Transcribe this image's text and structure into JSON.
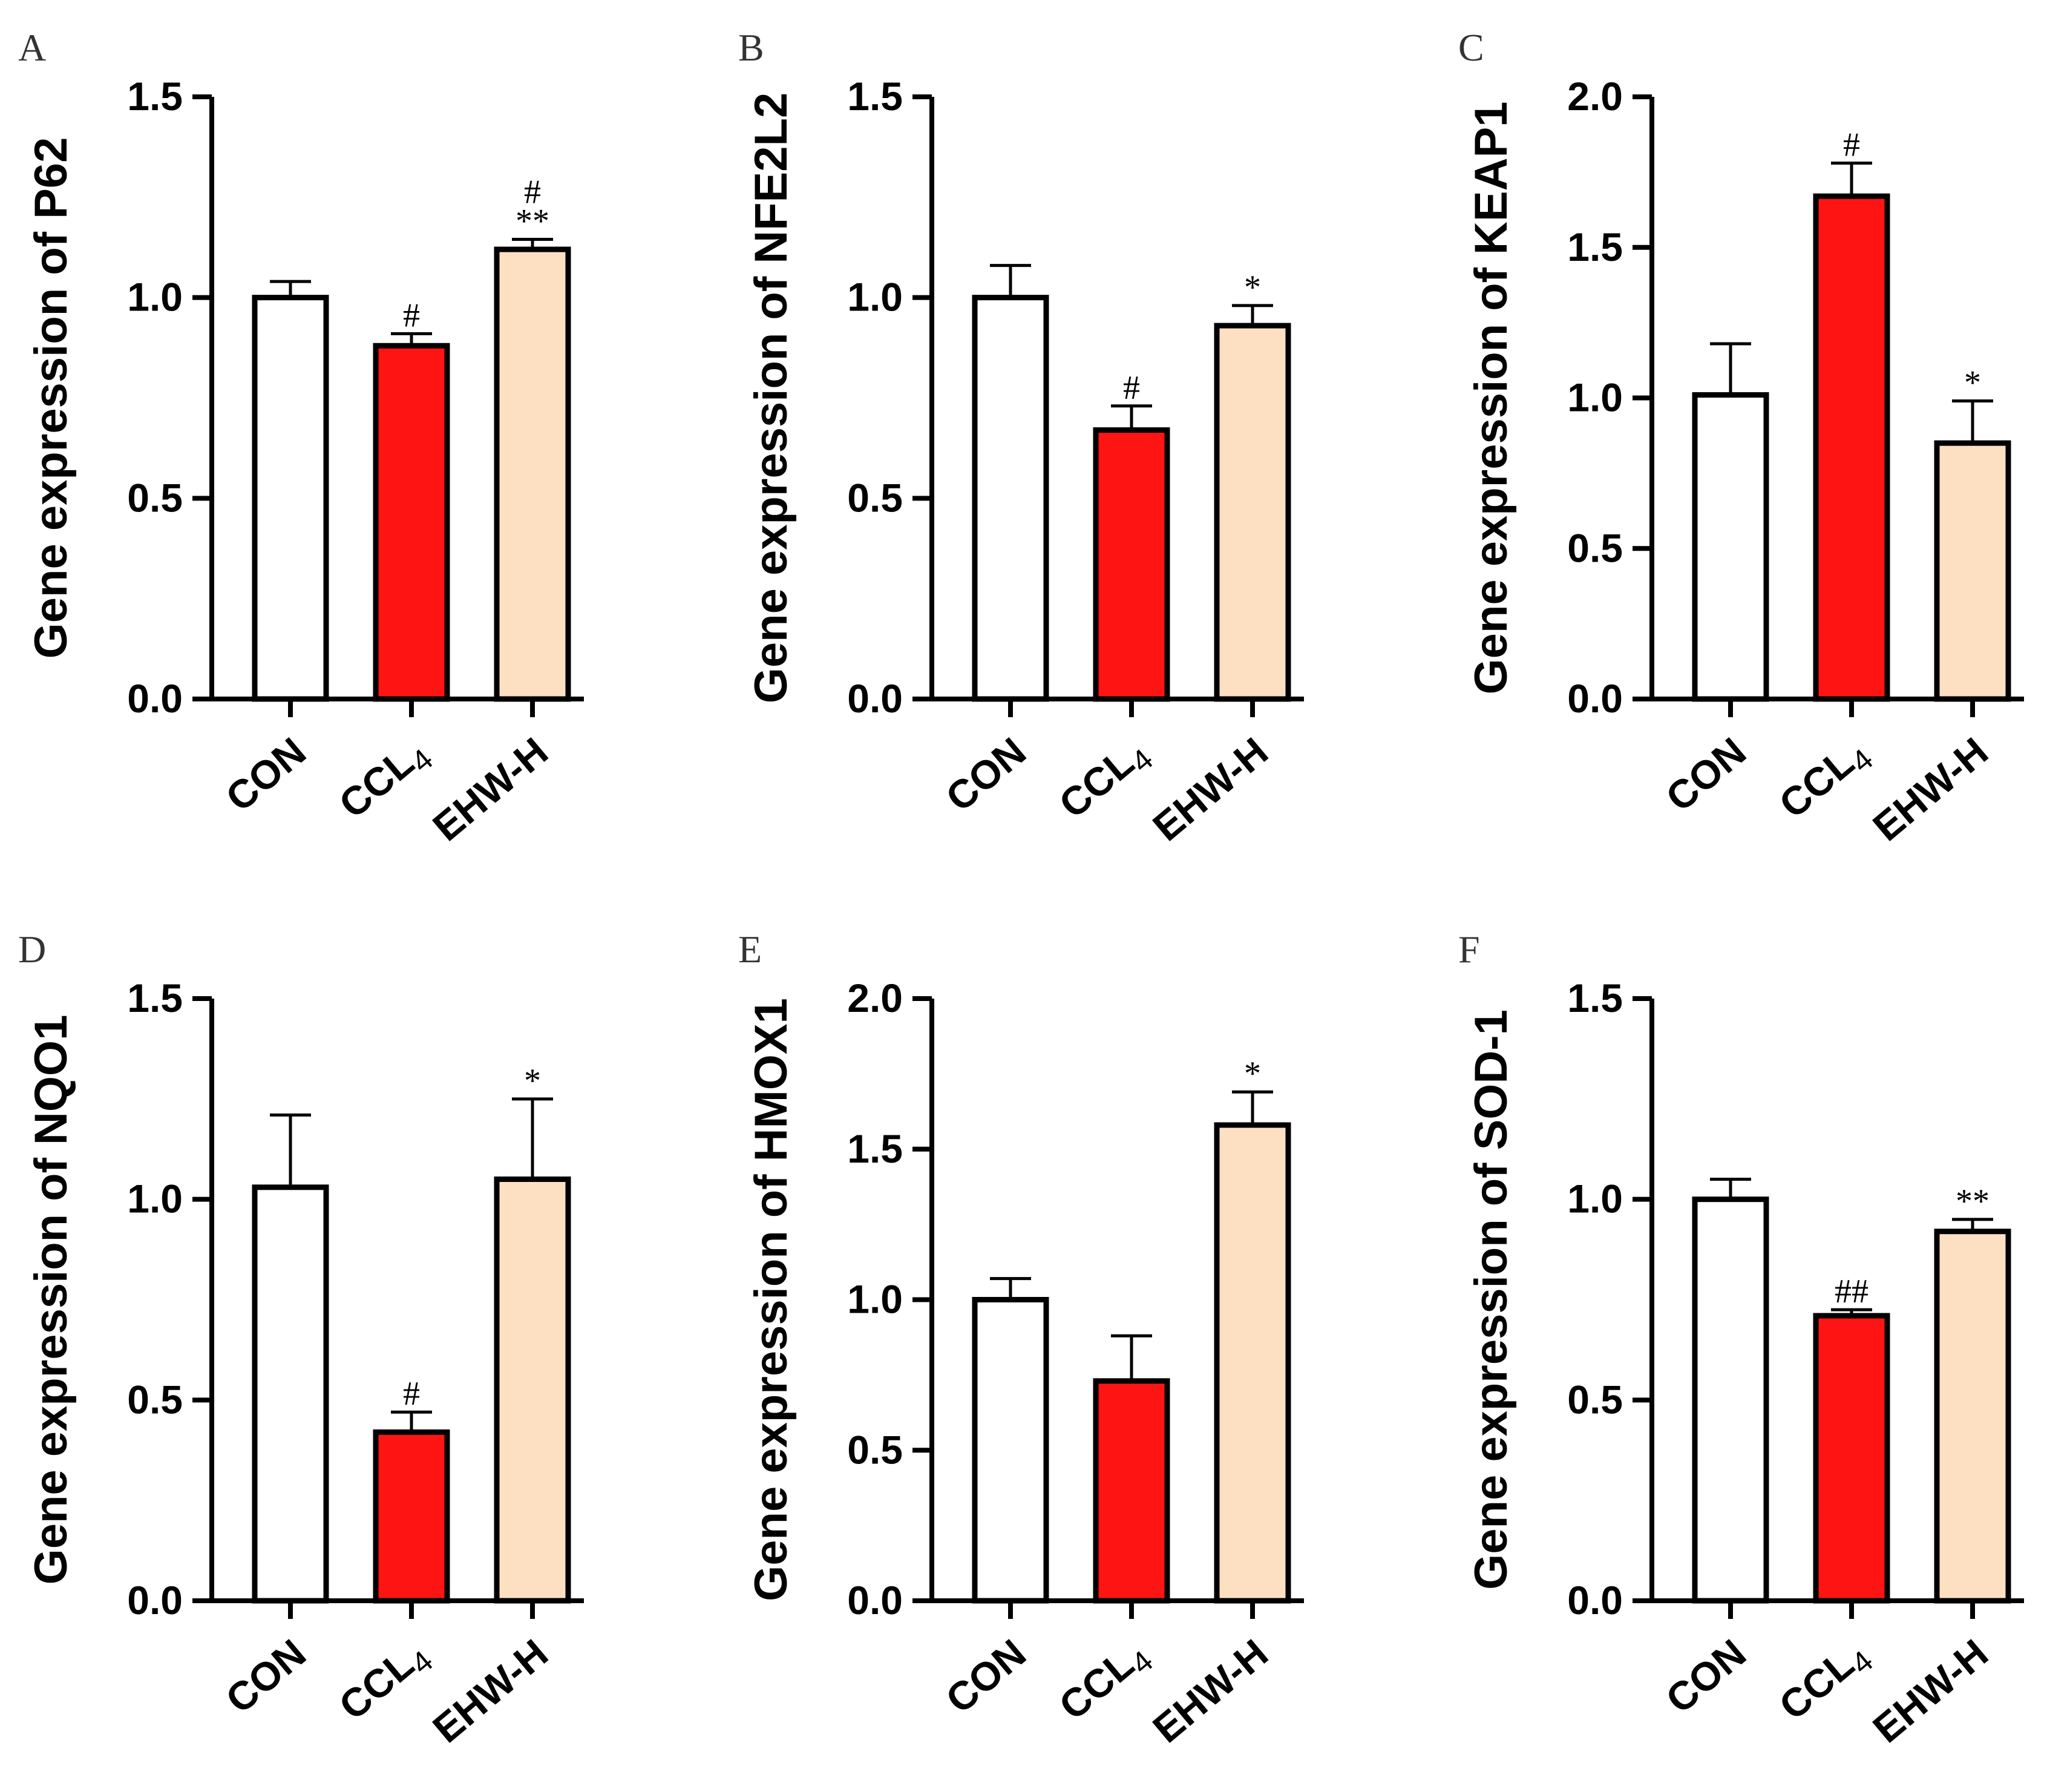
{
  "colors": {
    "con": "#ffffff",
    "ccl4": "#ff1414",
    "ehw": "#fde0c2",
    "stroke": "#000000"
  },
  "chart_data": [
    {
      "panel": "A",
      "type": "bar",
      "ylabel": "Gene expression of P62",
      "categories": [
        {
          "base": "CON",
          "sub": ""
        },
        {
          "base": "CCL",
          "sub": "4"
        },
        {
          "base": "EHW-H",
          "sub": ""
        }
      ],
      "values": [
        1.0,
        0.88,
        1.12
      ],
      "errors": [
        0.04,
        0.03,
        0.025
      ],
      "significance": [
        "",
        "#",
        "#\n**"
      ],
      "ylim": [
        0,
        1.5
      ],
      "yticks": [
        "0.0",
        "0.5",
        "1.0",
        "1.5"
      ],
      "tickvals": [
        0,
        0.5,
        1.0,
        1.5
      ]
    },
    {
      "panel": "B",
      "type": "bar",
      "ylabel": "Gene expression of NFE2L2",
      "categories": [
        {
          "base": "CON",
          "sub": ""
        },
        {
          "base": "CCL",
          "sub": "4"
        },
        {
          "base": "EHW-H",
          "sub": ""
        }
      ],
      "values": [
        1.0,
        0.67,
        0.93
      ],
      "errors": [
        0.08,
        0.06,
        0.05
      ],
      "significance": [
        "",
        "#",
        "*"
      ],
      "ylim": [
        0,
        1.5
      ],
      "yticks": [
        "0.0",
        "0.5",
        "1.0",
        "1.5"
      ],
      "tickvals": [
        0,
        0.5,
        1.0,
        1.5
      ]
    },
    {
      "panel": "C",
      "type": "bar",
      "ylabel": "Gene expression of KEAP1",
      "categories": [
        {
          "base": "CON",
          "sub": ""
        },
        {
          "base": "CCL",
          "sub": "4"
        },
        {
          "base": "EHW-H",
          "sub": ""
        }
      ],
      "values": [
        1.01,
        1.67,
        0.85
      ],
      "errors": [
        0.17,
        0.11,
        0.14
      ],
      "significance": [
        "",
        "#",
        "*"
      ],
      "ylim": [
        0,
        2.0
      ],
      "yticks": [
        "0.0",
        "0.5",
        "1.0",
        "1.5",
        "2.0"
      ],
      "tickvals": [
        0,
        0.5,
        1.0,
        1.5,
        2.0
      ]
    },
    {
      "panel": "D",
      "type": "bar",
      "ylabel": "Gene expression of NQO1",
      "categories": [
        {
          "base": "CON",
          "sub": ""
        },
        {
          "base": "CCL",
          "sub": "4"
        },
        {
          "base": "EHW-H",
          "sub": ""
        }
      ],
      "values": [
        1.03,
        0.42,
        1.05
      ],
      "errors": [
        0.18,
        0.05,
        0.2
      ],
      "significance": [
        "",
        "#",
        "*"
      ],
      "ylim": [
        0,
        1.5
      ],
      "yticks": [
        "0.0",
        "0.5",
        "1.0",
        "1.5"
      ],
      "tickvals": [
        0,
        0.5,
        1.0,
        1.5
      ]
    },
    {
      "panel": "E",
      "type": "bar",
      "ylabel": "Gene expression of HMOX1",
      "categories": [
        {
          "base": "CON",
          "sub": ""
        },
        {
          "base": "CCL",
          "sub": "4"
        },
        {
          "base": "EHW-H",
          "sub": ""
        }
      ],
      "values": [
        1.0,
        0.73,
        1.58
      ],
      "errors": [
        0.07,
        0.15,
        0.11
      ],
      "significance": [
        "",
        "",
        "*"
      ],
      "ylim": [
        0,
        2.0
      ],
      "yticks": [
        "0.0",
        "0.5",
        "1.0",
        "1.5",
        "2.0"
      ],
      "tickvals": [
        0,
        0.5,
        1.0,
        1.5,
        2.0
      ]
    },
    {
      "panel": "F",
      "type": "bar",
      "ylabel": "Gene expression of SOD-1",
      "categories": [
        {
          "base": "CON",
          "sub": ""
        },
        {
          "base": "CCL",
          "sub": "4"
        },
        {
          "base": "EHW-H",
          "sub": ""
        }
      ],
      "values": [
        1.0,
        0.71,
        0.92
      ],
      "errors": [
        0.05,
        0.015,
        0.03
      ],
      "significance": [
        "",
        "##",
        "**"
      ],
      "ylim": [
        0,
        1.5
      ],
      "yticks": [
        "0.0",
        "0.5",
        "1.0",
        "1.5"
      ],
      "tickvals": [
        0,
        0.5,
        1.0,
        1.5
      ]
    }
  ]
}
